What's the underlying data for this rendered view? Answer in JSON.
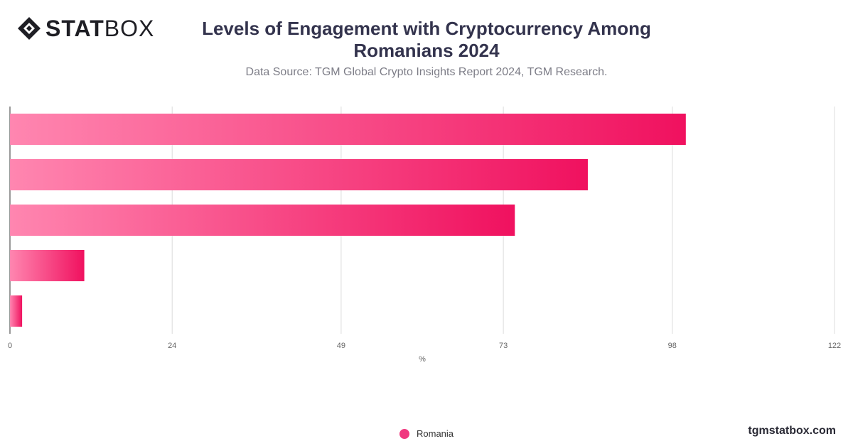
{
  "brand": {
    "logo_bold": "STAT",
    "logo_light": "BOX",
    "site": "tgmstatbox.com"
  },
  "header": {
    "title": "Levels of Engagement with Cryptocurrency Among Romanians 2024",
    "subtitle": "Data Source: TGM Global Crypto Insights Report 2024, TGM Research."
  },
  "colors": {
    "bar_start": "#ff86b0",
    "bar_end": "#f0115f",
    "grid": "#dcdcdc",
    "axis": "#333333"
  },
  "chart_data": {
    "type": "bar",
    "orientation": "horizontal",
    "categories": [
      "",
      "",
      "",
      "",
      ""
    ],
    "series": [
      {
        "name": "Romania",
        "values": [
          100,
          85.5,
          74.7,
          11,
          1.8
        ]
      }
    ],
    "xlabel": "%",
    "xticks": [
      "0",
      "24",
      "49",
      "73",
      "98",
      "122"
    ],
    "xlim": [
      0,
      122
    ],
    "grid": true,
    "legend_position": "bottom-center"
  }
}
